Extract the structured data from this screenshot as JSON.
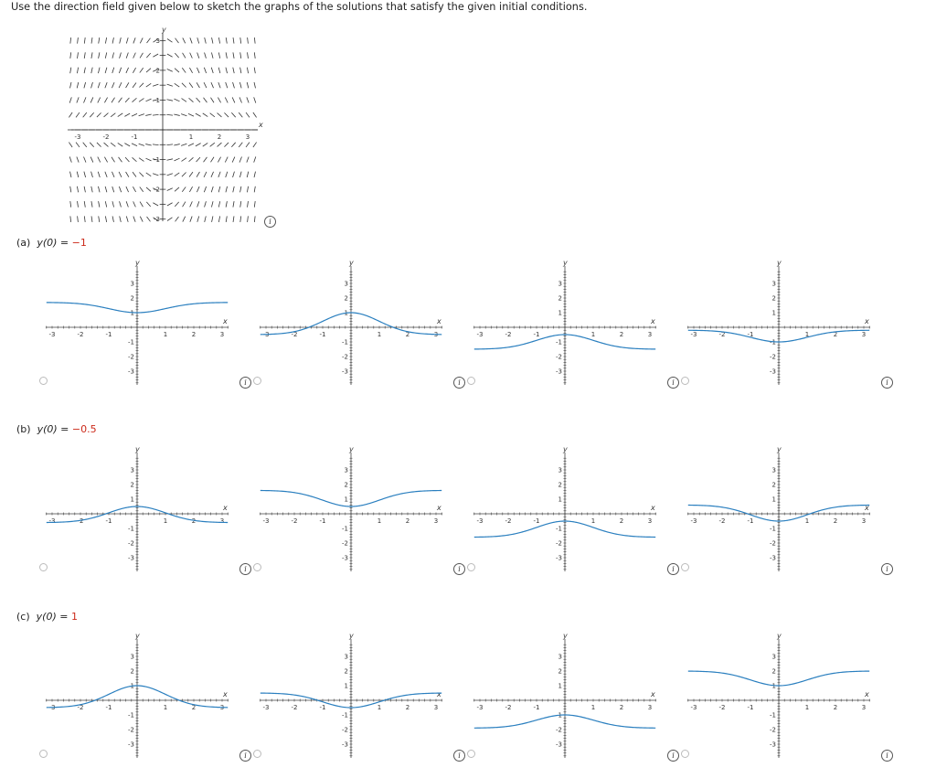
{
  "prompt": "Use the direction field given below to sketch the graphs of the solutions that satisfy the given initial conditions.",
  "direction_field": {
    "x_label": "x",
    "y_label": "y",
    "x_ticks": [
      "-3",
      "-2",
      "-1",
      "1",
      "2",
      "3"
    ],
    "y_ticks": [
      "3",
      "2",
      "1",
      "-1",
      "-2",
      "-3"
    ],
    "info_icon": "info-icon"
  },
  "parts": [
    {
      "id": "a",
      "prefix": "(a)",
      "condition": "y(0) = ",
      "value": "−1",
      "choices": [
        {
          "y0": 1.0,
          "shape": "valley",
          "a": 0.7
        },
        {
          "y0": 1.0,
          "shape": "hill",
          "a": 1.5
        },
        {
          "y0": -0.5,
          "shape": "hill",
          "a": 1.0
        },
        {
          "y0": -1.0,
          "shape": "valley",
          "a": 0.8
        }
      ]
    },
    {
      "id": "b",
      "prefix": "(b)",
      "condition": "y(0) = ",
      "value": "−0.5",
      "choices": [
        {
          "y0": 0.5,
          "shape": "hill",
          "a": 1.1
        },
        {
          "y0": 0.5,
          "shape": "valley",
          "a": 1.1
        },
        {
          "y0": -0.5,
          "shape": "hill",
          "a": 1.1
        },
        {
          "y0": -0.5,
          "shape": "valley",
          "a": 1.1
        }
      ]
    },
    {
      "id": "c",
      "prefix": "(c)",
      "condition": "y(0) = ",
      "value": "1",
      "choices": [
        {
          "y0": 1.0,
          "shape": "hill",
          "a": 1.5
        },
        {
          "y0": -0.5,
          "shape": "valley",
          "a": 1.0
        },
        {
          "y0": -1.0,
          "shape": "hill",
          "a": 0.9
        },
        {
          "y0": 1.0,
          "shape": "valley",
          "a": 1.0
        }
      ]
    }
  ],
  "choice_axes": {
    "x_label": "x",
    "y_label": "y",
    "x_ticks": [
      "-3",
      "-2",
      "-1",
      "1",
      "2",
      "3"
    ],
    "y_ticks": [
      "3",
      "2",
      "1",
      "-1",
      "-2",
      "-3"
    ],
    "curve_color": "#2a7fbf",
    "info_icon_text": "i"
  }
}
